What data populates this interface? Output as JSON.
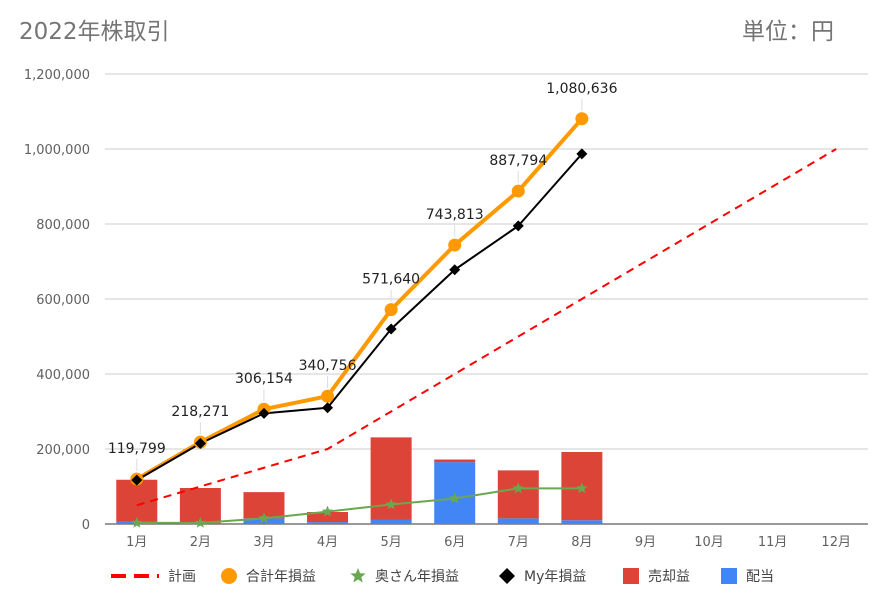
{
  "header": {
    "title": "2022年株取引",
    "unit": "単位：円"
  },
  "chart_data": {
    "type": "bar+line",
    "title": "2022年株取引",
    "unit_label": "単位：円",
    "categories": [
      "1月",
      "2月",
      "3月",
      "4月",
      "5月",
      "6月",
      "7月",
      "8月",
      "9月",
      "10月",
      "11月",
      "12月"
    ],
    "y_ticks": [
      "0",
      "200,000",
      "400,000",
      "600,000",
      "800,000",
      "1,000,000",
      "1,200,000"
    ],
    "ylim": [
      0,
      1200000
    ],
    "grid": true,
    "stacked_bars": [
      {
        "name": "配当",
        "color": "#4285f4",
        "values": [
          8000,
          3000,
          15000,
          5000,
          12000,
          165000,
          15000,
          10000
        ]
      },
      {
        "name": "売却益",
        "color": "#db4437",
        "values": [
          110000,
          93000,
          70000,
          27000,
          219000,
          7000,
          128000,
          182000
        ]
      }
    ],
    "lines": [
      {
        "name": "計画",
        "color": "#ff0000",
        "style": "dashed",
        "marker": "none",
        "values": [
          50000,
          100000,
          150000,
          200000,
          300000,
          400000,
          500000,
          600000,
          700000,
          800000,
          900000,
          1000000
        ]
      },
      {
        "name": "合計年損益",
        "color": "#ff9900",
        "style": "solid",
        "marker": "circle",
        "values": [
          119799,
          218271,
          306154,
          340756,
          571640,
          743813,
          887794,
          1080636
        ]
      },
      {
        "name": "奥さん年損益",
        "color": "#6aa84f",
        "style": "solid",
        "marker": "star",
        "values": [
          3000,
          3000,
          15000,
          33000,
          52000,
          68000,
          95000,
          95000
        ]
      },
      {
        "name": "My年損益",
        "color": "#000000",
        "style": "solid",
        "marker": "diamond",
        "values": [
          117000,
          215000,
          295000,
          310000,
          520000,
          678000,
          795000,
          987000
        ]
      }
    ],
    "data_labels": [
      "119,799",
      "218,271",
      "306,154",
      "340,756",
      "571,640",
      "743,813",
      "887,794",
      "1,080,636"
    ],
    "legend": [
      {
        "name": "計画",
        "symbol": "dash",
        "color": "#ff0000"
      },
      {
        "name": "合計年損益",
        "symbol": "circle",
        "color": "#ff9900"
      },
      {
        "name": "奥さん年損益",
        "symbol": "star",
        "color": "#6aa84f"
      },
      {
        "name": "My年損益",
        "symbol": "diamond",
        "color": "#000000"
      },
      {
        "name": "売却益",
        "symbol": "square",
        "color": "#db4437"
      },
      {
        "name": "配当",
        "symbol": "square",
        "color": "#4285f4"
      }
    ],
    "legend_position": "bottom"
  }
}
